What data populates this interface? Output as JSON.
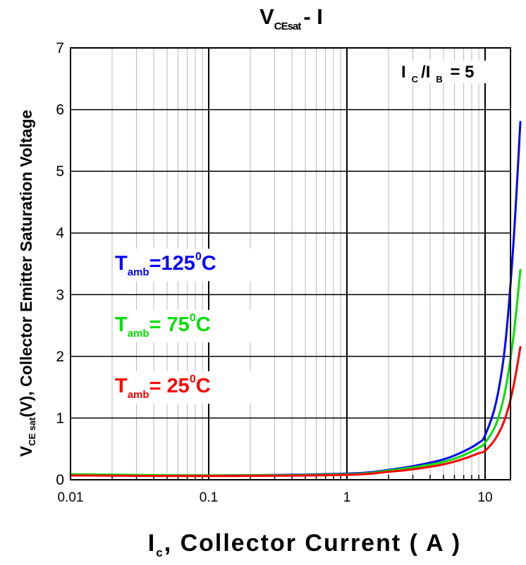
{
  "chart_data": {
    "type": "line",
    "title": {
      "main": "V",
      "sub": "CEsat",
      "rest": "- I"
    },
    "xlabel": {
      "main": "I",
      "sub": "c",
      "rest": ", Collector Current ( A )"
    },
    "ylabel": {
      "main": "V",
      "sub": "CE sat",
      "rest": "(V), Collector Emitter Saturation Voltage"
    },
    "x_scale": "log",
    "xlim": [
      0.01,
      20
    ],
    "ylim": [
      0,
      7
    ],
    "grid": true,
    "x_ticks": [
      {
        "value": 0.01,
        "label": "0.01"
      },
      {
        "value": 0.1,
        "label": "0.1"
      },
      {
        "value": 1,
        "label": "1"
      },
      {
        "value": 10,
        "label": "10"
      }
    ],
    "y_ticks": [
      {
        "value": 0,
        "label": "0"
      },
      {
        "value": 1,
        "label": "1"
      },
      {
        "value": 2,
        "label": "2"
      },
      {
        "value": 3,
        "label": "3"
      },
      {
        "value": 4,
        "label": "4"
      },
      {
        "value": 5,
        "label": "5"
      },
      {
        "value": 6,
        "label": "6"
      },
      {
        "value": 7,
        "label": "7"
      }
    ],
    "annotation": {
      "part1": "I",
      "sub1": "C",
      "part2": "/I",
      "sub2": "B",
      "part3": " = 5"
    },
    "series": [
      {
        "label_main": "T",
        "label_sub": "amb",
        "label_rest": "=125",
        "label_sup": "0",
        "label_unit": "C",
        "color": "#0000ff",
        "x": [
          0.01,
          0.1,
          1,
          2,
          3,
          5,
          7,
          9,
          10,
          12,
          14,
          16,
          18
        ],
        "y": [
          0.08,
          0.07,
          0.1,
          0.16,
          0.22,
          0.33,
          0.46,
          0.6,
          0.72,
          1.25,
          2.2,
          3.8,
          5.8
        ]
      },
      {
        "label_main": "T",
        "label_sub": "amb",
        "label_rest": "= 75",
        "label_sup": "0",
        "label_unit": "C",
        "color": "#00e000",
        "x": [
          0.01,
          0.1,
          1,
          2,
          3,
          5,
          7,
          9,
          10,
          12,
          14,
          16,
          18
        ],
        "y": [
          0.09,
          0.07,
          0.09,
          0.15,
          0.2,
          0.29,
          0.4,
          0.52,
          0.6,
          0.9,
          1.45,
          2.3,
          3.4
        ]
      },
      {
        "label_main": "T",
        "label_sub": "amb",
        "label_rest": "= 25",
        "label_sup": "0",
        "label_unit": "C",
        "color": "#ff0000",
        "x": [
          0.01,
          0.1,
          1,
          2,
          3,
          5,
          7,
          9,
          10,
          12,
          14,
          16,
          18
        ],
        "y": [
          0.07,
          0.06,
          0.08,
          0.13,
          0.17,
          0.25,
          0.34,
          0.43,
          0.47,
          0.68,
          1.0,
          1.5,
          2.15
        ]
      }
    ]
  }
}
